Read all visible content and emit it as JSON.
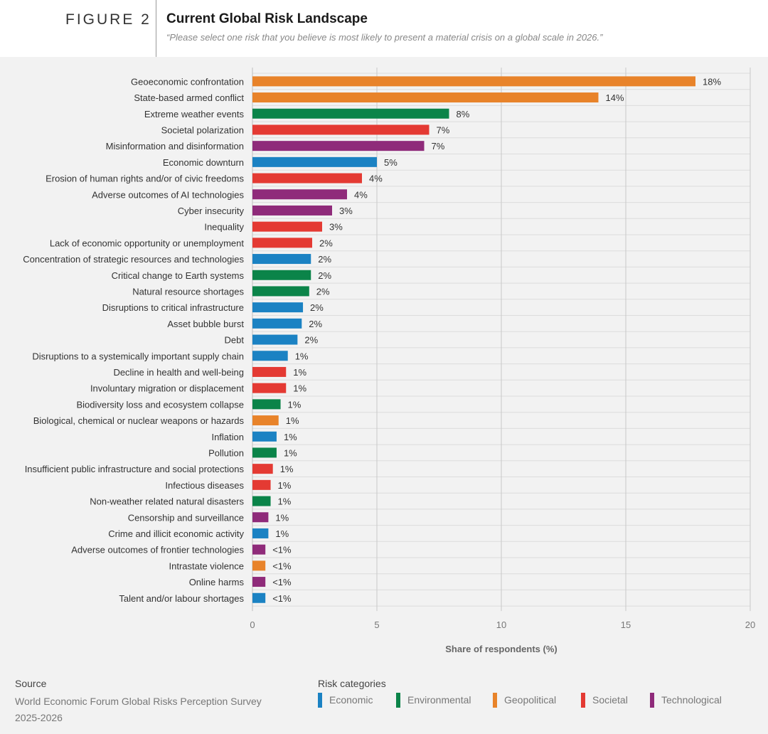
{
  "header": {
    "figure_label": "FIGURE 2",
    "title": "Current Global Risk Landscape",
    "subtitle": "“Please select one risk that you believe is most likely to present a material crisis on a global scale in 2026.”"
  },
  "colors": {
    "Economic": "#1b82c3",
    "Environmental": "#0b8449",
    "Geopolitical": "#e8832a",
    "Societal": "#e43a33",
    "Technological": "#8f2b7a"
  },
  "chart_data": {
    "type": "bar",
    "orientation": "horizontal",
    "xlabel": "Share of respondents (%)",
    "xlim": [
      0,
      20
    ],
    "xticks": [
      0,
      5,
      10,
      15,
      20
    ],
    "grid": true,
    "categories": [
      "Geoeconomic confrontation",
      "State-based armed conflict",
      "Extreme weather events",
      "Societal polarization",
      "Misinformation and disinformation",
      "Economic downturn",
      "Erosion of human rights and/or of civic freedoms",
      "Adverse outcomes of AI technologies",
      "Cyber insecurity",
      "Inequality",
      "Lack of economic opportunity or unemployment",
      "Concentration of strategic resources and technologies",
      "Critical change to Earth systems",
      "Natural resource shortages",
      "Disruptions to critical infrastructure",
      "Asset bubble burst",
      "Debt",
      "Disruptions to a systemically important supply chain",
      "Decline in health and well-being",
      "Involuntary migration or displacement",
      "Biodiversity loss and ecosystem collapse",
      "Biological, chemical or nuclear weapons or hazards",
      "Inflation",
      "Pollution",
      "Insufficient public infrastructure and social protections",
      "Infectious diseases",
      "Non-weather related natural disasters",
      "Censorship and surveillance",
      "Crime and illicit economic activity",
      "Adverse outcomes of frontier technologies",
      "Intrastate violence",
      "Online harms",
      "Talent and/or labour shortages"
    ],
    "values": [
      17.8,
      13.9,
      7.9,
      7.1,
      6.9,
      5.0,
      4.4,
      3.8,
      3.2,
      2.8,
      2.4,
      2.35,
      2.35,
      2.28,
      2.03,
      1.98,
      1.81,
      1.42,
      1.35,
      1.35,
      1.13,
      1.05,
      0.97,
      0.97,
      0.82,
      0.73,
      0.73,
      0.64,
      0.64,
      0.52,
      0.52,
      0.52,
      0.52
    ],
    "labels": [
      "18%",
      "14%",
      "8%",
      "7%",
      "7%",
      "5%",
      "4%",
      "4%",
      "3%",
      "3%",
      "2%",
      "2%",
      "2%",
      "2%",
      "2%",
      "2%",
      "2%",
      "1%",
      "1%",
      "1%",
      "1%",
      "1%",
      "1%",
      "1%",
      "1%",
      "1%",
      "1%",
      "1%",
      "1%",
      "<1%",
      "<1%",
      "<1%",
      "<1%"
    ],
    "series_category": [
      "Geopolitical",
      "Geopolitical",
      "Environmental",
      "Societal",
      "Technological",
      "Economic",
      "Societal",
      "Technological",
      "Technological",
      "Societal",
      "Societal",
      "Economic",
      "Environmental",
      "Environmental",
      "Economic",
      "Economic",
      "Economic",
      "Economic",
      "Societal",
      "Societal",
      "Environmental",
      "Geopolitical",
      "Economic",
      "Environmental",
      "Societal",
      "Societal",
      "Environmental",
      "Technological",
      "Economic",
      "Technological",
      "Geopolitical",
      "Technological",
      "Economic"
    ]
  },
  "footer": {
    "source_title": "Source",
    "source_text": "World Economic Forum Global Risks Perception Survey 2025-2026",
    "legend_title": "Risk categories",
    "legend": [
      "Economic",
      "Environmental",
      "Geopolitical",
      "Societal",
      "Technological"
    ]
  }
}
